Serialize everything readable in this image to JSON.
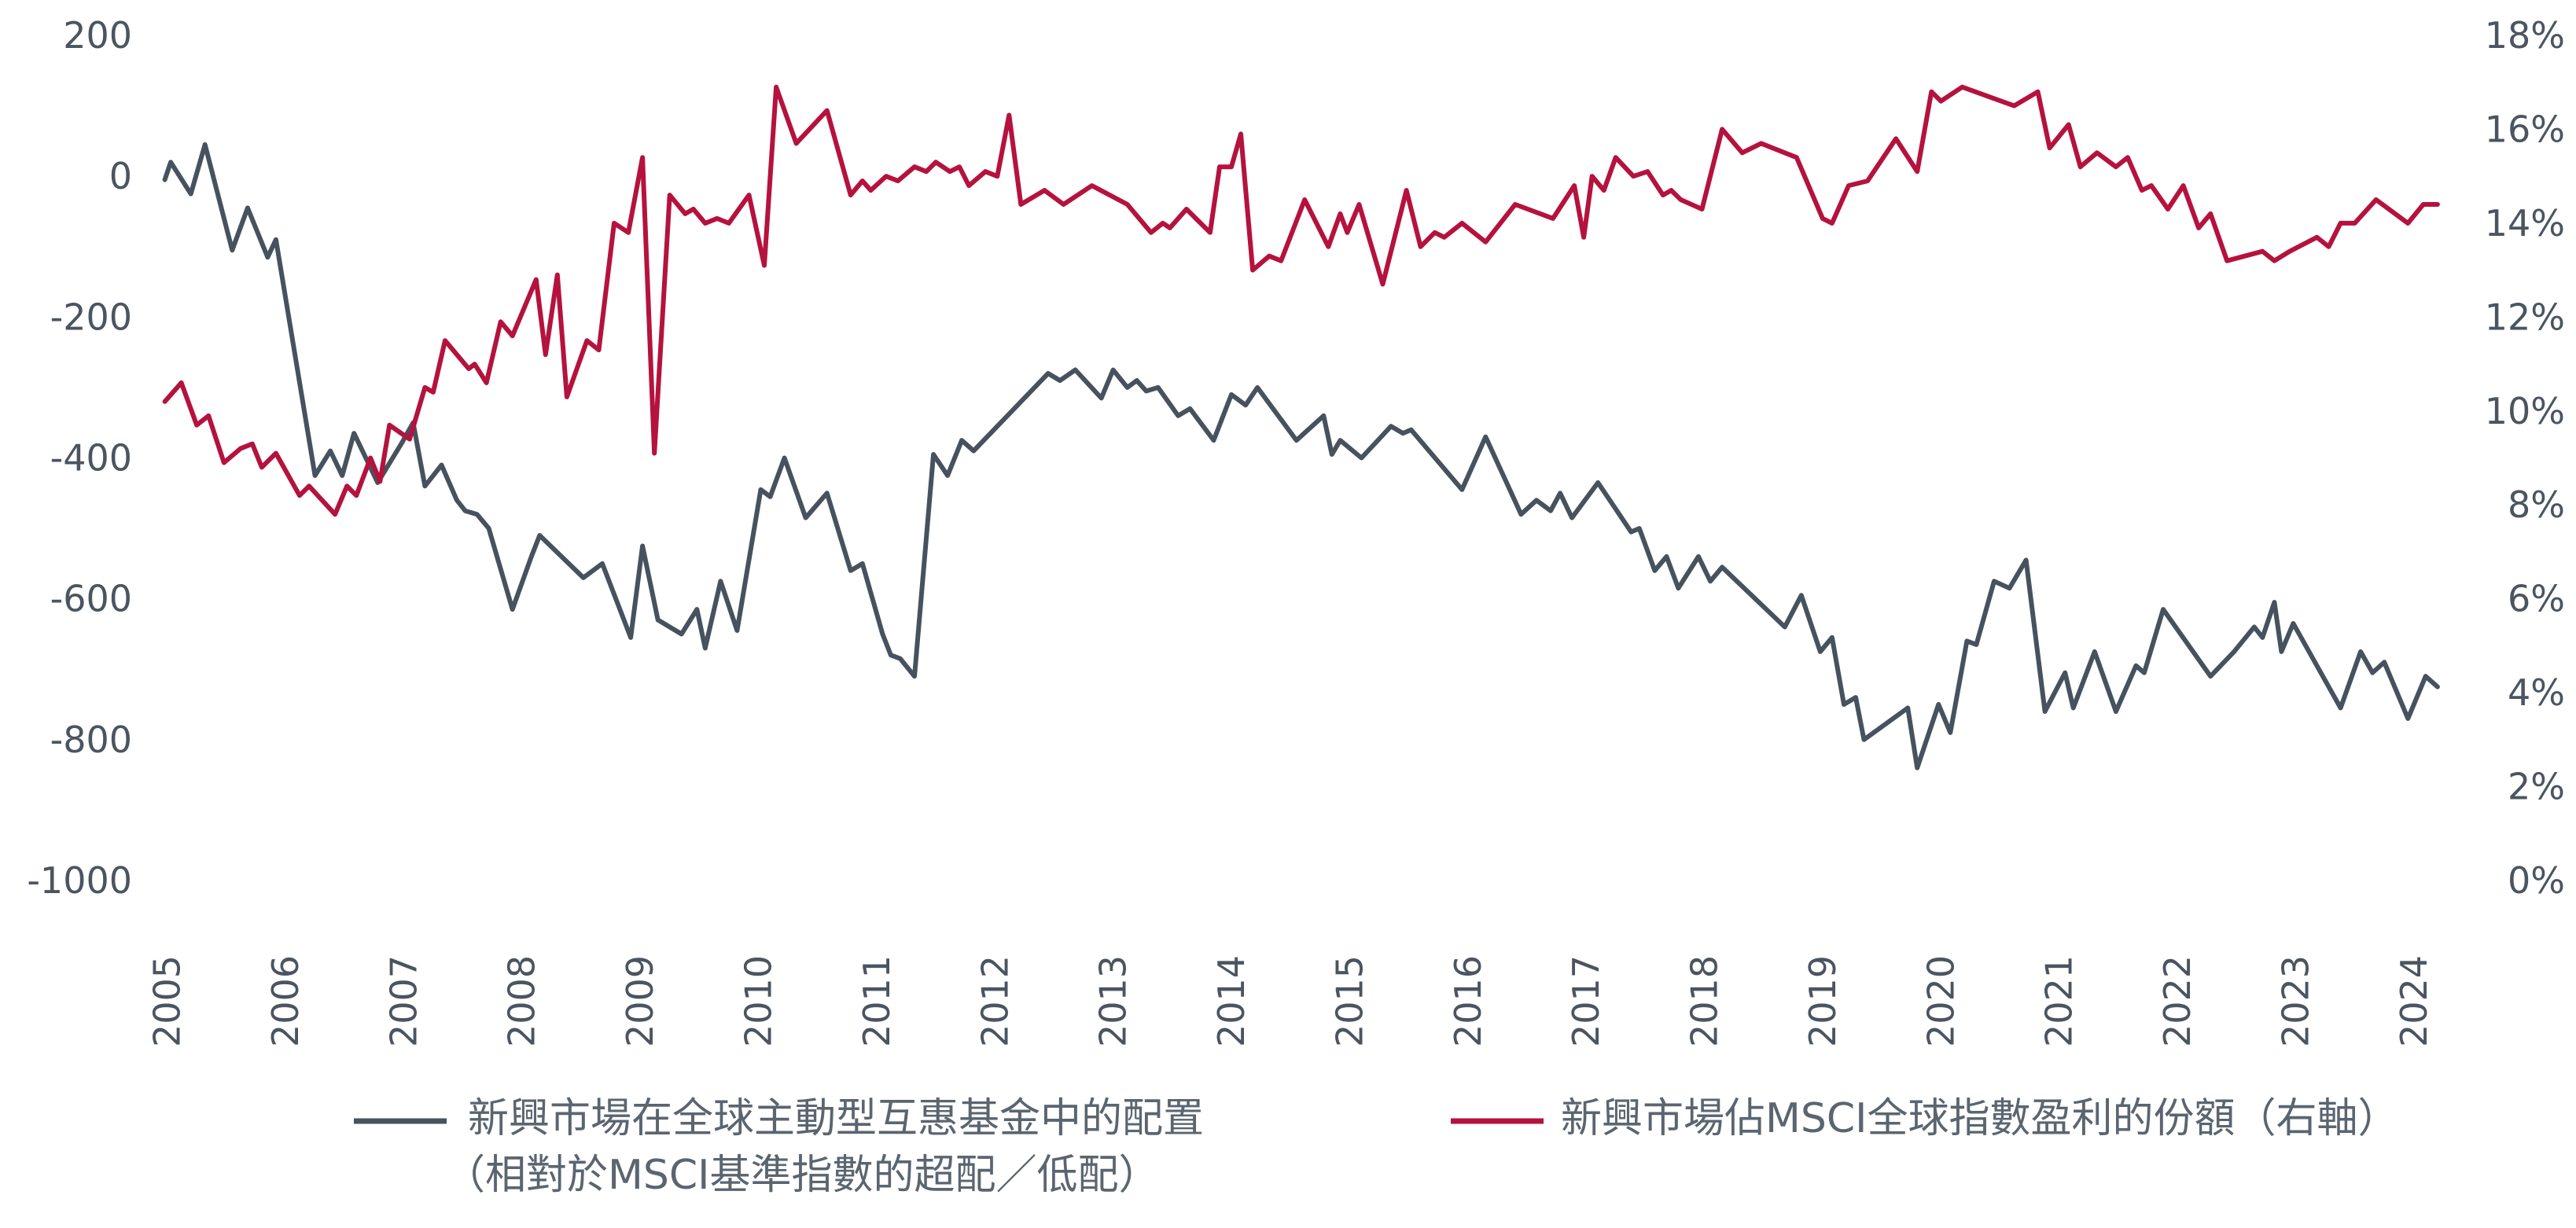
{
  "chart_data": {
    "type": "line",
    "title": "",
    "grid": false,
    "legend_position": "bottom",
    "x_axis": {
      "range": [
        2004.75,
        2024.5
      ],
      "ticks": [
        2005,
        2006,
        2007,
        2008,
        2009,
        2010,
        2011,
        2012,
        2013,
        2014,
        2015,
        2016,
        2017,
        2018,
        2019,
        2020,
        2021,
        2022,
        2023,
        2024
      ],
      "tick_labels": [
        "2005",
        "2006",
        "2007",
        "2008",
        "2009",
        "2010",
        "2011",
        "2012",
        "2013",
        "2014",
        "2015",
        "2016",
        "2017",
        "2018",
        "2019",
        "2020",
        "2021",
        "2022",
        "2023",
        "2024"
      ]
    },
    "y_left": {
      "range": [
        -1000,
        200
      ],
      "ticks": [
        200,
        0,
        -200,
        -400,
        -600,
        -800,
        -1000
      ],
      "tick_labels": [
        "200",
        "0",
        "-200",
        "-400",
        "-600",
        "-800",
        "-1000"
      ]
    },
    "y_right": {
      "range": [
        0,
        18
      ],
      "ticks": [
        18,
        16,
        14,
        12,
        10,
        8,
        6,
        4,
        2,
        0
      ],
      "tick_labels": [
        "18%",
        "16%",
        "14%",
        "12%",
        "10%",
        "8%",
        "6%",
        "4%",
        "2%",
        "0%"
      ]
    },
    "series": [
      {
        "name": "新興市場在全球主動型互惠基金中的配置（相對於MSCI基準指數的超配／低配）",
        "legend_lines": [
          "新興市場在全球主動型互惠基金中的配置",
          "（相對於MSCI基準指數的超配／低配）"
        ],
        "color": "#46525e",
        "axis": "left",
        "points": [
          [
            2004.98,
            -5
          ],
          [
            2005.03,
            20
          ],
          [
            2005.2,
            -25
          ],
          [
            2005.32,
            45
          ],
          [
            2005.55,
            -105
          ],
          [
            2005.68,
            -45
          ],
          [
            2005.85,
            -115
          ],
          [
            2005.92,
            -90
          ],
          [
            2006.25,
            -425
          ],
          [
            2006.38,
            -390
          ],
          [
            2006.48,
            -425
          ],
          [
            2006.58,
            -365
          ],
          [
            2006.78,
            -435
          ],
          [
            2006.98,
            -380
          ],
          [
            2007.08,
            -350
          ],
          [
            2007.18,
            -440
          ],
          [
            2007.32,
            -410
          ],
          [
            2007.45,
            -460
          ],
          [
            2007.52,
            -475
          ],
          [
            2007.62,
            -480
          ],
          [
            2007.72,
            -500
          ],
          [
            2007.92,
            -615
          ],
          [
            2008.08,
            -540
          ],
          [
            2008.15,
            -510
          ],
          [
            2008.52,
            -570
          ],
          [
            2008.68,
            -550
          ],
          [
            2008.92,
            -655
          ],
          [
            2009.02,
            -525
          ],
          [
            2009.15,
            -630
          ],
          [
            2009.35,
            -650
          ],
          [
            2009.48,
            -615
          ],
          [
            2009.55,
            -670
          ],
          [
            2009.68,
            -575
          ],
          [
            2009.82,
            -645
          ],
          [
            2010.02,
            -445
          ],
          [
            2010.1,
            -455
          ],
          [
            2010.22,
            -400
          ],
          [
            2010.4,
            -485
          ],
          [
            2010.58,
            -450
          ],
          [
            2010.78,
            -560
          ],
          [
            2010.88,
            -550
          ],
          [
            2011.05,
            -650
          ],
          [
            2011.12,
            -680
          ],
          [
            2011.2,
            -685
          ],
          [
            2011.32,
            -710
          ],
          [
            2011.48,
            -395
          ],
          [
            2011.6,
            -425
          ],
          [
            2011.72,
            -375
          ],
          [
            2011.82,
            -390
          ],
          [
            2012.45,
            -280
          ],
          [
            2012.55,
            -290
          ],
          [
            2012.68,
            -275
          ],
          [
            2012.9,
            -315
          ],
          [
            2013.0,
            -275
          ],
          [
            2013.12,
            -300
          ],
          [
            2013.2,
            -290
          ],
          [
            2013.28,
            -305
          ],
          [
            2013.38,
            -300
          ],
          [
            2013.55,
            -340
          ],
          [
            2013.65,
            -330
          ],
          [
            2013.85,
            -375
          ],
          [
            2014.0,
            -310
          ],
          [
            2014.12,
            -325
          ],
          [
            2014.22,
            -300
          ],
          [
            2014.55,
            -375
          ],
          [
            2014.78,
            -340
          ],
          [
            2014.85,
            -395
          ],
          [
            2014.92,
            -375
          ],
          [
            2015.1,
            -400
          ],
          [
            2015.35,
            -355
          ],
          [
            2015.45,
            -365
          ],
          [
            2015.52,
            -360
          ],
          [
            2015.95,
            -445
          ],
          [
            2016.15,
            -370
          ],
          [
            2016.45,
            -480
          ],
          [
            2016.58,
            -460
          ],
          [
            2016.7,
            -475
          ],
          [
            2016.78,
            -450
          ],
          [
            2016.88,
            -485
          ],
          [
            2017.1,
            -435
          ],
          [
            2017.28,
            -480
          ],
          [
            2017.38,
            -505
          ],
          [
            2017.45,
            -500
          ],
          [
            2017.58,
            -560
          ],
          [
            2017.68,
            -540
          ],
          [
            2017.78,
            -585
          ],
          [
            2017.95,
            -540
          ],
          [
            2018.05,
            -575
          ],
          [
            2018.15,
            -555
          ],
          [
            2018.68,
            -640
          ],
          [
            2018.82,
            -595
          ],
          [
            2018.98,
            -675
          ],
          [
            2019.08,
            -655
          ],
          [
            2019.18,
            -750
          ],
          [
            2019.28,
            -740
          ],
          [
            2019.35,
            -800
          ],
          [
            2019.72,
            -755
          ],
          [
            2019.8,
            -840
          ],
          [
            2019.98,
            -750
          ],
          [
            2020.08,
            -790
          ],
          [
            2020.22,
            -660
          ],
          [
            2020.3,
            -665
          ],
          [
            2020.45,
            -575
          ],
          [
            2020.58,
            -585
          ],
          [
            2020.72,
            -545
          ],
          [
            2020.88,
            -760
          ],
          [
            2021.05,
            -705
          ],
          [
            2021.12,
            -755
          ],
          [
            2021.3,
            -675
          ],
          [
            2021.48,
            -760
          ],
          [
            2021.65,
            -695
          ],
          [
            2021.72,
            -705
          ],
          [
            2021.88,
            -615
          ],
          [
            2022.28,
            -710
          ],
          [
            2022.48,
            -675
          ],
          [
            2022.65,
            -640
          ],
          [
            2022.72,
            -655
          ],
          [
            2022.82,
            -605
          ],
          [
            2022.88,
            -675
          ],
          [
            2022.98,
            -635
          ],
          [
            2023.38,
            -755
          ],
          [
            2023.55,
            -675
          ],
          [
            2023.65,
            -705
          ],
          [
            2023.75,
            -690
          ],
          [
            2023.95,
            -770
          ],
          [
            2024.1,
            -710
          ],
          [
            2024.2,
            -725
          ]
        ]
      },
      {
        "name": "新興市場佔MSCI全球指數盈利的份額（右軸）",
        "legend_lines": [
          "新興市場佔MSCI全球指數盈利的份額（右軸）"
        ],
        "color": "#b5123e",
        "axis": "right",
        "points": [
          [
            2004.98,
            10.2
          ],
          [
            2005.12,
            10.6
          ],
          [
            2005.25,
            9.7
          ],
          [
            2005.35,
            9.9
          ],
          [
            2005.48,
            8.9
          ],
          [
            2005.62,
            9.2
          ],
          [
            2005.72,
            9.3
          ],
          [
            2005.8,
            8.8
          ],
          [
            2005.92,
            9.1
          ],
          [
            2006.12,
            8.2
          ],
          [
            2006.2,
            8.4
          ],
          [
            2006.42,
            7.8
          ],
          [
            2006.52,
            8.4
          ],
          [
            2006.6,
            8.2
          ],
          [
            2006.72,
            9.0
          ],
          [
            2006.8,
            8.5
          ],
          [
            2006.88,
            9.7
          ],
          [
            2007.05,
            9.4
          ],
          [
            2007.18,
            10.5
          ],
          [
            2007.25,
            10.4
          ],
          [
            2007.35,
            11.5
          ],
          [
            2007.45,
            11.2
          ],
          [
            2007.55,
            10.9
          ],
          [
            2007.6,
            11.0
          ],
          [
            2007.7,
            10.6
          ],
          [
            2007.82,
            11.9
          ],
          [
            2007.92,
            11.6
          ],
          [
            2008.12,
            12.8
          ],
          [
            2008.2,
            11.2
          ],
          [
            2008.3,
            12.9
          ],
          [
            2008.38,
            10.3
          ],
          [
            2008.55,
            11.5
          ],
          [
            2008.65,
            11.3
          ],
          [
            2008.78,
            14.0
          ],
          [
            2008.9,
            13.8
          ],
          [
            2009.02,
            15.4
          ],
          [
            2009.12,
            9.1
          ],
          [
            2009.25,
            14.6
          ],
          [
            2009.38,
            14.2
          ],
          [
            2009.45,
            14.3
          ],
          [
            2009.55,
            14.0
          ],
          [
            2009.65,
            14.1
          ],
          [
            2009.75,
            14.0
          ],
          [
            2009.92,
            14.6
          ],
          [
            2010.05,
            13.1
          ],
          [
            2010.15,
            16.9
          ],
          [
            2010.32,
            15.7
          ],
          [
            2010.58,
            16.4
          ],
          [
            2010.78,
            14.6
          ],
          [
            2010.88,
            14.9
          ],
          [
            2010.95,
            14.7
          ],
          [
            2011.08,
            15.0
          ],
          [
            2011.18,
            14.9
          ],
          [
            2011.32,
            15.2
          ],
          [
            2011.42,
            15.1
          ],
          [
            2011.5,
            15.3
          ],
          [
            2011.62,
            15.1
          ],
          [
            2011.7,
            15.2
          ],
          [
            2011.78,
            14.8
          ],
          [
            2011.92,
            15.1
          ],
          [
            2012.02,
            15.0
          ],
          [
            2012.12,
            16.3
          ],
          [
            2012.22,
            14.4
          ],
          [
            2012.42,
            14.7
          ],
          [
            2012.58,
            14.4
          ],
          [
            2012.82,
            14.8
          ],
          [
            2013.12,
            14.4
          ],
          [
            2013.32,
            13.8
          ],
          [
            2013.42,
            14.0
          ],
          [
            2013.48,
            13.9
          ],
          [
            2013.62,
            14.3
          ],
          [
            2013.82,
            13.8
          ],
          [
            2013.9,
            15.2
          ],
          [
            2014.0,
            15.2
          ],
          [
            2014.08,
            15.9
          ],
          [
            2014.18,
            13.0
          ],
          [
            2014.32,
            13.3
          ],
          [
            2014.42,
            13.2
          ],
          [
            2014.62,
            14.5
          ],
          [
            2014.82,
            13.5
          ],
          [
            2014.92,
            14.2
          ],
          [
            2014.98,
            13.8
          ],
          [
            2015.08,
            14.4
          ],
          [
            2015.28,
            12.7
          ],
          [
            2015.48,
            14.7
          ],
          [
            2015.6,
            13.5
          ],
          [
            2015.72,
            13.8
          ],
          [
            2015.8,
            13.7
          ],
          [
            2015.95,
            14.0
          ],
          [
            2016.15,
            13.6
          ],
          [
            2016.4,
            14.4
          ],
          [
            2016.72,
            14.1
          ],
          [
            2016.9,
            14.8
          ],
          [
            2016.98,
            13.7
          ],
          [
            2017.05,
            15.0
          ],
          [
            2017.15,
            14.7
          ],
          [
            2017.25,
            15.4
          ],
          [
            2017.4,
            15.0
          ],
          [
            2017.52,
            15.1
          ],
          [
            2017.65,
            14.6
          ],
          [
            2017.72,
            14.7
          ],
          [
            2017.8,
            14.5
          ],
          [
            2017.98,
            14.3
          ],
          [
            2018.15,
            16.0
          ],
          [
            2018.32,
            15.5
          ],
          [
            2018.48,
            15.7
          ],
          [
            2018.78,
            15.4
          ],
          [
            2019.0,
            14.1
          ],
          [
            2019.08,
            14.0
          ],
          [
            2019.22,
            14.8
          ],
          [
            2019.38,
            14.9
          ],
          [
            2019.62,
            15.8
          ],
          [
            2019.8,
            15.1
          ],
          [
            2019.92,
            16.8
          ],
          [
            2020.0,
            16.6
          ],
          [
            2020.18,
            16.9
          ],
          [
            2020.62,
            16.5
          ],
          [
            2020.82,
            16.8
          ],
          [
            2020.92,
            15.6
          ],
          [
            2021.08,
            16.1
          ],
          [
            2021.18,
            15.2
          ],
          [
            2021.32,
            15.5
          ],
          [
            2021.48,
            15.2
          ],
          [
            2021.58,
            15.4
          ],
          [
            2021.7,
            14.7
          ],
          [
            2021.78,
            14.8
          ],
          [
            2021.92,
            14.3
          ],
          [
            2022.05,
            14.8
          ],
          [
            2022.18,
            13.9
          ],
          [
            2022.28,
            14.2
          ],
          [
            2022.42,
            13.2
          ],
          [
            2022.72,
            13.4
          ],
          [
            2022.82,
            13.2
          ],
          [
            2022.95,
            13.4
          ],
          [
            2023.18,
            13.7
          ],
          [
            2023.28,
            13.5
          ],
          [
            2023.38,
            14.0
          ],
          [
            2023.5,
            14.0
          ],
          [
            2023.68,
            14.5
          ],
          [
            2023.95,
            14.0
          ],
          [
            2024.08,
            14.4
          ],
          [
            2024.2,
            14.4
          ]
        ]
      }
    ]
  }
}
